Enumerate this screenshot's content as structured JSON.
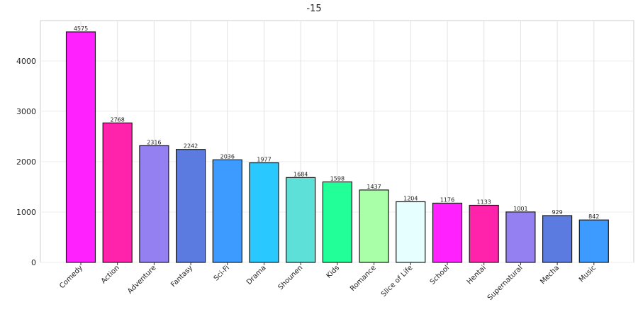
{
  "chart_data": {
    "type": "bar",
    "title": "-15",
    "xlabel": "",
    "ylabel": "",
    "categories": [
      "Comedy",
      "Action",
      "Adventure",
      "Fantasy",
      "Sci-Fi",
      "Drama",
      "Shounen",
      "Kids",
      "Romance",
      "Slice of Life",
      "School",
      "Hentai",
      "Supernatural",
      "Mecha",
      "Music"
    ],
    "values": [
      4575,
      2768,
      2316,
      2242,
      2036,
      1977,
      1684,
      1598,
      1437,
      1204,
      1176,
      1133,
      1001,
      929,
      842
    ],
    "colors": [
      "#ff22ff",
      "#ff22aa",
      "#9480f0",
      "#5b7be0",
      "#3d9bff",
      "#29c8ff",
      "#5ce0d8",
      "#22ff99",
      "#a8ffa8",
      "#e6ffff",
      "#ff22ff",
      "#ff22aa",
      "#9480f0",
      "#5b7be0",
      "#3d9bff"
    ],
    "ylim": [
      0,
      4800
    ],
    "yticks": [
      0,
      1000,
      2000,
      3000,
      4000
    ],
    "grid": true,
    "data_labels": true
  }
}
